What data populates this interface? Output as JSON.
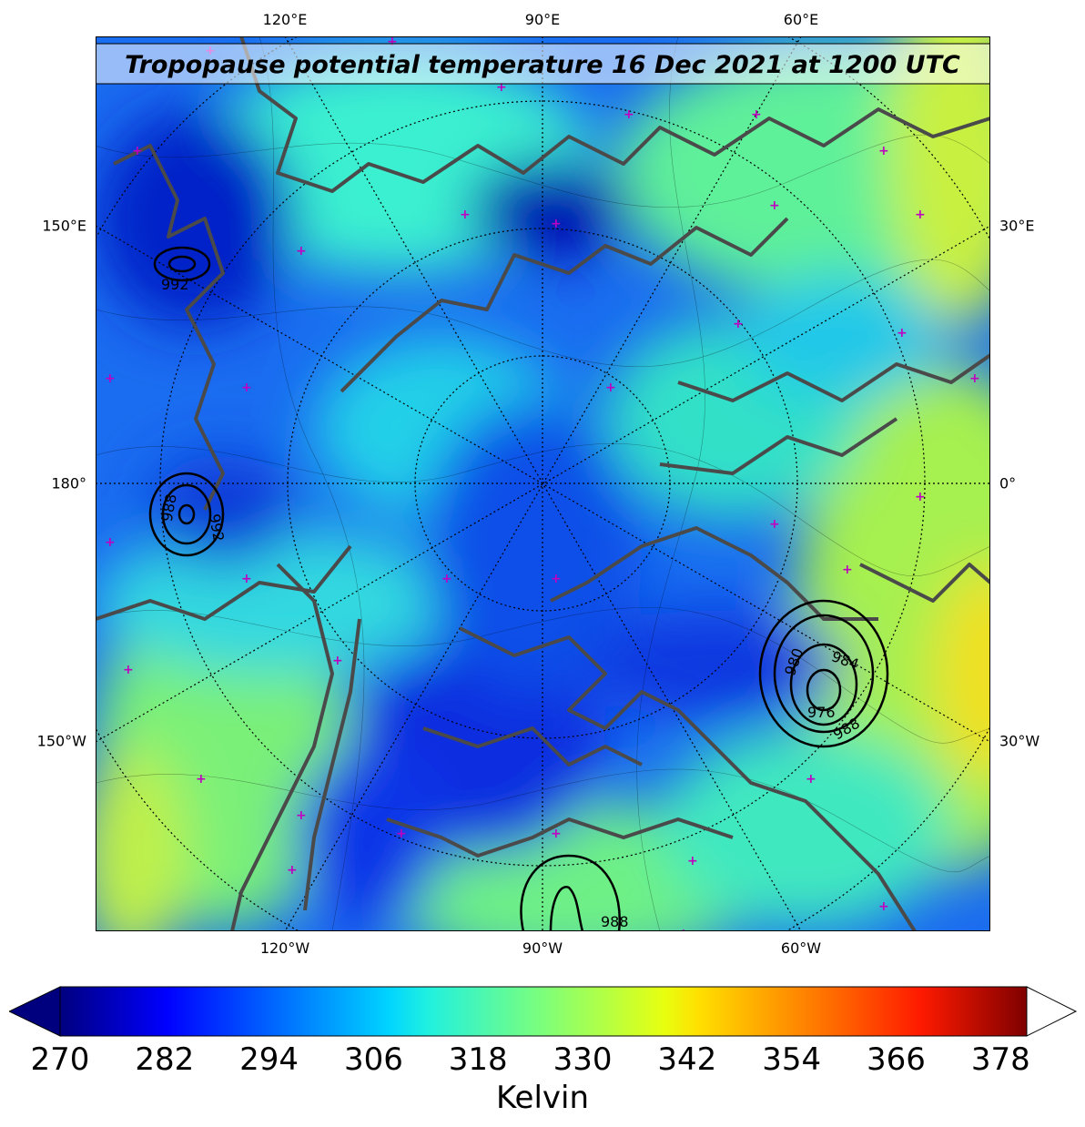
{
  "title": "Tropopause potential temperature 16 Dec 2021 at 1200 UTC",
  "map": {
    "top_lon_labels": [
      "120°E",
      "90°E",
      "60°E"
    ],
    "bottom_lon_labels": [
      "120°W",
      "90°W",
      "60°W"
    ],
    "left_lon_labels": [
      "150°E",
      "180°",
      "150°W"
    ],
    "right_lon_labels": [
      "30°E",
      "0°",
      "30°W"
    ],
    "pressure_contour_labels": [
      "992",
      "988",
      "992",
      "980",
      "984",
      "976",
      "988",
      "988"
    ],
    "colors": {
      "coastline": "#4a4a4a",
      "graticule": "#000000",
      "marker": "#c000c0",
      "contour": "#000000"
    }
  },
  "colorbar": {
    "label": "Kelvin",
    "ticks": [
      "270",
      "282",
      "294",
      "306",
      "318",
      "330",
      "342",
      "354",
      "366",
      "378"
    ],
    "min": 270,
    "max": 381,
    "colormap": "jet",
    "extend": "both"
  }
}
